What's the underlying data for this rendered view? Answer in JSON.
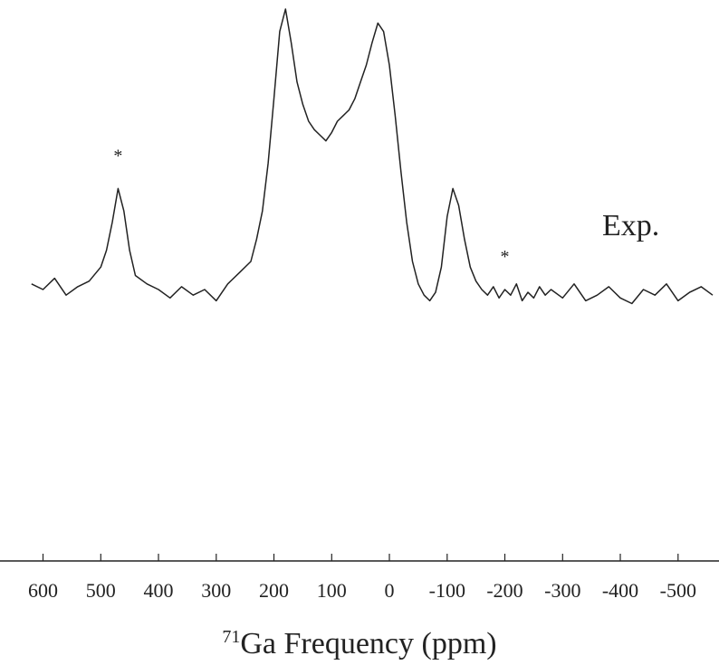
{
  "chart_data": {
    "type": "line",
    "series": [
      {
        "name": "Exp.",
        "x": [
          620,
          600,
          580,
          560,
          540,
          520,
          500,
          490,
          480,
          470,
          460,
          450,
          440,
          420,
          400,
          380,
          360,
          340,
          320,
          300,
          280,
          260,
          240,
          230,
          220,
          210,
          200,
          190,
          180,
          170,
          160,
          150,
          140,
          130,
          120,
          110,
          100,
          90,
          80,
          70,
          60,
          50,
          40,
          30,
          20,
          10,
          0,
          -10,
          -20,
          -30,
          -40,
          -50,
          -60,
          -70,
          -80,
          -90,
          -100,
          -110,
          -120,
          -130,
          -140,
          -150,
          -160,
          -170,
          -180,
          -190,
          -200,
          -210,
          -220,
          -230,
          -240,
          -250,
          -260,
          -270,
          -280,
          -300,
          -320,
          -340,
          -360,
          -380,
          -400,
          -420,
          -440,
          -460,
          -480,
          -500,
          -520,
          -540,
          -560
        ],
        "y": [
          0.02,
          0.0,
          0.04,
          -0.02,
          0.01,
          0.03,
          0.08,
          0.14,
          0.24,
          0.36,
          0.28,
          0.14,
          0.05,
          0.02,
          0.0,
          -0.03,
          0.01,
          -0.02,
          0.0,
          -0.04,
          0.02,
          0.06,
          0.1,
          0.18,
          0.28,
          0.45,
          0.68,
          0.92,
          1.0,
          0.88,
          0.74,
          0.66,
          0.6,
          0.57,
          0.55,
          0.53,
          0.56,
          0.6,
          0.62,
          0.64,
          0.68,
          0.74,
          0.8,
          0.88,
          0.95,
          0.92,
          0.8,
          0.62,
          0.42,
          0.24,
          0.1,
          0.02,
          -0.02,
          -0.04,
          -0.01,
          0.08,
          0.26,
          0.36,
          0.3,
          0.18,
          0.08,
          0.03,
          0.0,
          -0.02,
          0.01,
          -0.03,
          0.0,
          -0.02,
          0.02,
          -0.04,
          -0.01,
          -0.03,
          0.01,
          -0.02,
          0.0,
          -0.03,
          0.02,
          -0.04,
          -0.02,
          0.01,
          -0.03,
          -0.05,
          0.0,
          -0.02,
          0.02,
          -0.04,
          -0.01,
          0.01,
          -0.02
        ]
      }
    ],
    "xlabel": "Ga Frequency (ppm)",
    "xlabel_isotope": "71",
    "xlim": [
      620,
      -560
    ],
    "x_reversed": true,
    "x_ticks": [
      600,
      500,
      400,
      300,
      200,
      100,
      0,
      -100,
      -200,
      -300,
      -400,
      -500
    ],
    "x_tick_labels": [
      "600",
      "500",
      "400",
      "300",
      "200",
      "100",
      "0",
      "-100",
      "-200",
      "-300",
      "-400",
      "-500"
    ],
    "ylim": [
      -0.15,
      1.05
    ],
    "y_axis_visible": false,
    "grid": false,
    "sideband_markers": [
      {
        "x": 470,
        "text": "*"
      },
      {
        "x": -200,
        "text": "*"
      }
    ],
    "series_label": {
      "text": "Exp."
    },
    "colors": {
      "trace": "#222222",
      "axis": "#222222"
    }
  }
}
